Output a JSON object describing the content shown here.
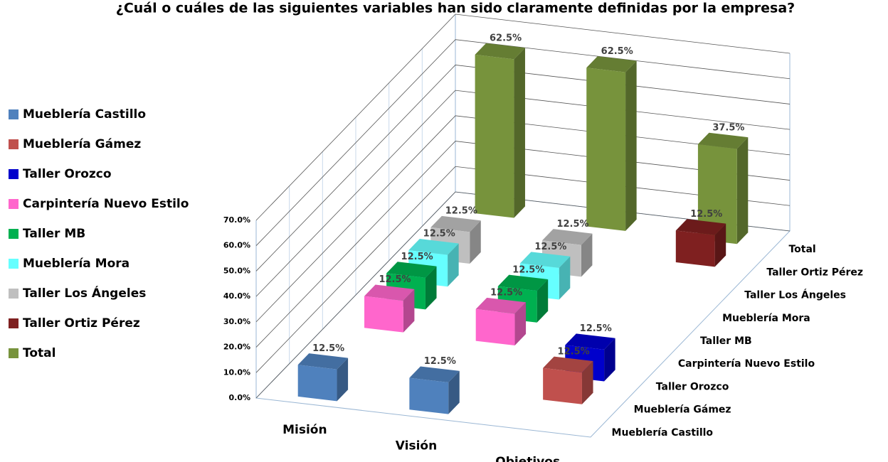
{
  "chart_data": {
    "type": "bar3d",
    "title": "¿Cuál o cuáles de las siguientes variables han sido claramente definidas por la empresa?",
    "categories": [
      "Misión",
      "Visión",
      "Objetivos"
    ],
    "series": [
      {
        "name": "Mueblería Castillo",
        "color": "#4f81bd",
        "values": [
          12.5,
          12.5,
          null
        ],
        "value_labels": [
          "12.5%",
          "12.5%",
          null
        ]
      },
      {
        "name": "Mueblería Gámez",
        "color": "#c0504d",
        "values": [
          null,
          null,
          12.5
        ],
        "value_labels": [
          null,
          null,
          "12.5%"
        ]
      },
      {
        "name": "Taller Orozco",
        "color": "#0000cc",
        "values": [
          null,
          null,
          12.5
        ],
        "value_labels": [
          null,
          null,
          "12.5%"
        ]
      },
      {
        "name": "Carpintería Nuevo Estilo",
        "color": "#ff66cc",
        "values": [
          12.5,
          12.5,
          null
        ],
        "value_labels": [
          "12.5%",
          "12.5%",
          null
        ]
      },
      {
        "name": "Taller MB",
        "color": "#00b050",
        "values": [
          12.5,
          12.5,
          null
        ],
        "value_labels": [
          "12.5%",
          "12.5%",
          null
        ]
      },
      {
        "name": "Mueblería Mora",
        "color": "#66ffff",
        "values": [
          12.5,
          12.5,
          null
        ],
        "value_labels": [
          "12.5%",
          "12.5%",
          null
        ]
      },
      {
        "name": "Taller Los Ángeles",
        "color": "#bfbfbf",
        "values": [
          12.5,
          12.5,
          null
        ],
        "value_labels": [
          "12.5%",
          "12.5%",
          null
        ]
      },
      {
        "name": "Taller Ortiz Pérez",
        "color": "#7f2020",
        "values": [
          null,
          null,
          12.5
        ],
        "value_labels": [
          null,
          null,
          "12.5%"
        ]
      },
      {
        "name": "Total",
        "color": "#77933c",
        "values": [
          62.5,
          62.5,
          37.5
        ],
        "value_labels": [
          "62.5%",
          "62.5%",
          "37.5%"
        ]
      }
    ],
    "ylim": [
      0,
      70
    ],
    "yticks": [
      {
        "value": 0,
        "label": "0.0%"
      },
      {
        "value": 10,
        "label": "10.0%"
      },
      {
        "value": 20,
        "label": "20.0%"
      },
      {
        "value": 30,
        "label": "30.0%"
      },
      {
        "value": 40,
        "label": "40.0%"
      },
      {
        "value": 50,
        "label": "50.0%"
      },
      {
        "value": 60,
        "label": "60.0%"
      },
      {
        "value": 70,
        "label": "70.0%"
      }
    ],
    "grid": true,
    "legend": "left"
  }
}
